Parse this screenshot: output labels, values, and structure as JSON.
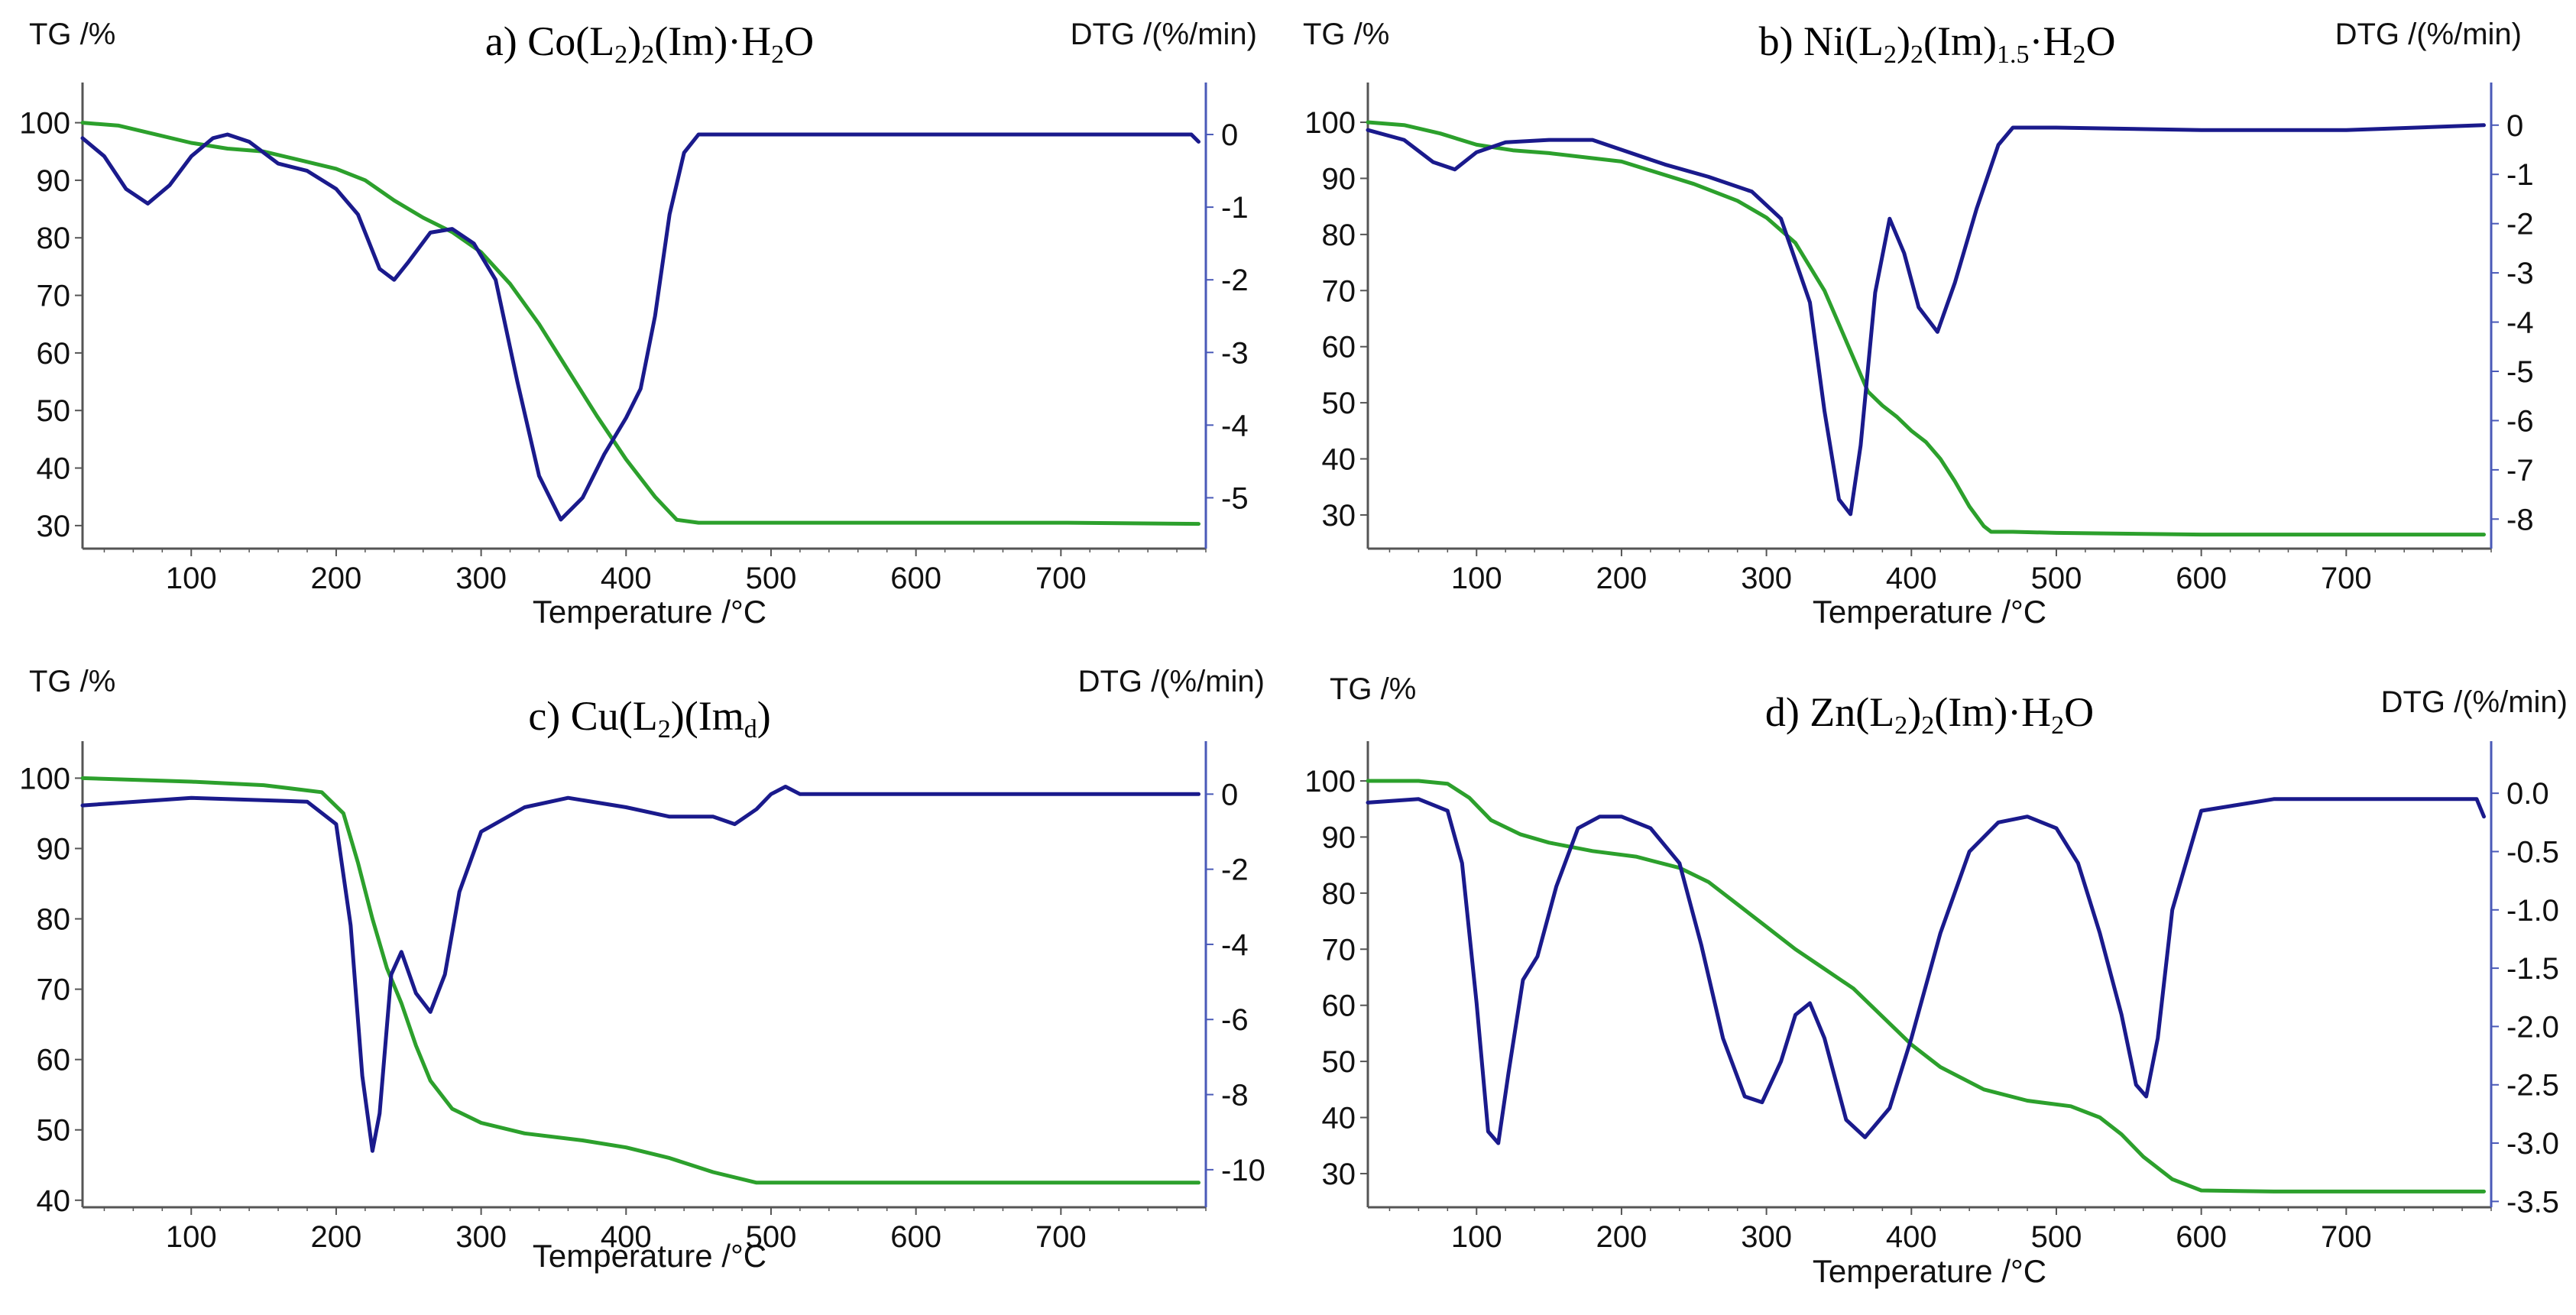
{
  "figure": {
    "x_label": "Temperature /°C",
    "y_left_label": "TG /%",
    "y_right_label": "DTG /(%/min)",
    "colors": {
      "tg": "#2ca02c",
      "dtg": "#1a1a8c",
      "right_axis": "#4a5ab8",
      "axes": "#555555",
      "grid_text": "#111111"
    }
  },
  "chart_data": [
    {
      "type": "line",
      "title": {
        "prefix": "a) Co(L",
        "sub1": "2",
        "mid1": ")",
        "sub2": "2",
        "rest": "(Im)·H",
        "sub3": "2",
        "tail": "O"
      },
      "title_text": "a) Co(L2)2(Im)·H2O",
      "xlabel": "Temperature /°C",
      "ylabel_left": "TG /%",
      "ylabel_right": "DTG /(%/min)",
      "xlim": [
        25,
        800
      ],
      "ylim_left": [
        26,
        103
      ],
      "ylim_right": [
        -5.7,
        0.4
      ],
      "x_ticks": [
        100,
        200,
        300,
        400,
        500,
        600,
        700
      ],
      "y_left_ticks": [
        30,
        40,
        50,
        60,
        70,
        80,
        90,
        100
      ],
      "y_right_ticks": [
        0,
        -1,
        -2,
        -3,
        -4,
        -5
      ],
      "series": [
        {
          "name": "TG",
          "axis": "left",
          "x": [
            25,
            50,
            75,
            100,
            125,
            150,
            175,
            200,
            220,
            240,
            260,
            280,
            300,
            320,
            340,
            360,
            380,
            400,
            420,
            435,
            450,
            500,
            600,
            700,
            795
          ],
          "y": [
            100,
            99.5,
            98,
            96.5,
            95.5,
            95,
            93.5,
            92,
            90,
            86.5,
            83.5,
            81,
            77.5,
            72,
            65,
            57,
            49,
            41.5,
            35,
            31,
            30.5,
            30.5,
            30.5,
            30.5,
            30.3
          ]
        },
        {
          "name": "DTG",
          "axis": "right",
          "x": [
            25,
            40,
            55,
            70,
            85,
            100,
            115,
            125,
            140,
            160,
            180,
            200,
            215,
            230,
            240,
            250,
            265,
            280,
            295,
            310,
            325,
            340,
            355,
            370,
            385,
            400,
            410,
            420,
            430,
            440,
            450,
            460,
            480,
            500,
            600,
            700,
            790,
            795
          ],
          "y": [
            -0.05,
            -0.3,
            -0.75,
            -0.95,
            -0.7,
            -0.3,
            -0.05,
            0,
            -0.1,
            -0.4,
            -0.5,
            -0.75,
            -1.1,
            -1.85,
            -2.0,
            -1.75,
            -1.35,
            -1.3,
            -1.5,
            -2.0,
            -3.4,
            -4.7,
            -5.3,
            -5.0,
            -4.4,
            -3.9,
            -3.5,
            -2.5,
            -1.1,
            -0.25,
            0,
            0,
            0,
            0,
            0,
            0,
            0,
            -0.1
          ]
        }
      ]
    },
    {
      "type": "line",
      "title": {
        "prefix": "b) Ni(L",
        "sub1": "2",
        "mid1": ")",
        "sub2": "2",
        "rest": "(Im)",
        "sub3": "1.5",
        "rest2": "·H",
        "sub4": "2",
        "tail": "O"
      },
      "title_text": "b) Ni(L2)2(Im)1.5·H2O",
      "xlabel": "Temperature /°C",
      "ylabel_left": "TG /%",
      "ylabel_right": "DTG /(%/min)",
      "xlim": [
        25,
        800
      ],
      "ylim_left": [
        24,
        103
      ],
      "ylim_right": [
        -8.6,
        0.4
      ],
      "x_ticks": [
        100,
        200,
        300,
        400,
        500,
        600,
        700
      ],
      "y_left_ticks": [
        30,
        40,
        50,
        60,
        70,
        80,
        90,
        100
      ],
      "y_right_ticks": [
        0,
        -1,
        -2,
        -3,
        -4,
        -5,
        -6,
        -7,
        -8
      ],
      "series": [
        {
          "name": "TG",
          "axis": "left",
          "x": [
            25,
            50,
            75,
            100,
            125,
            150,
            200,
            250,
            280,
            300,
            320,
            340,
            350,
            360,
            370,
            380,
            390,
            400,
            410,
            420,
            430,
            440,
            450,
            455,
            470,
            500,
            600,
            700,
            795
          ],
          "y": [
            100,
            99.5,
            98,
            96,
            95,
            94.5,
            93,
            89,
            86,
            83,
            78.5,
            70,
            64,
            58,
            52,
            49.5,
            47.5,
            45,
            43,
            40,
            36,
            31.5,
            28,
            27,
            27,
            26.8,
            26.5,
            26.5,
            26.5
          ]
        },
        {
          "name": "DTG",
          "axis": "right",
          "x": [
            25,
            50,
            70,
            85,
            100,
            120,
            150,
            180,
            200,
            230,
            260,
            290,
            310,
            330,
            340,
            350,
            358,
            365,
            375,
            385,
            395,
            405,
            418,
            430,
            445,
            460,
            470,
            500,
            600,
            700,
            795
          ],
          "y": [
            -0.1,
            -0.3,
            -0.75,
            -0.9,
            -0.55,
            -0.35,
            -0.3,
            -0.3,
            -0.5,
            -0.8,
            -1.05,
            -1.35,
            -1.9,
            -3.6,
            -5.8,
            -7.6,
            -7.9,
            -6.5,
            -3.4,
            -1.9,
            -2.6,
            -3.7,
            -4.2,
            -3.2,
            -1.7,
            -0.4,
            -0.05,
            -0.05,
            -0.1,
            -0.1,
            0
          ]
        }
      ]
    },
    {
      "type": "line",
      "title": {
        "prefix": "c) Cu(L",
        "sub1": "2",
        "mid1": ")(Im",
        "sub2": "d",
        "tail": ")"
      },
      "title_text": "c) Cu(L2)(Imd)",
      "xlabel": "Temperature /°C",
      "ylabel_left": "TG /%",
      "ylabel_right": "DTG /(%/min)",
      "xlim": [
        25,
        800
      ],
      "ylim_left": [
        39,
        102
      ],
      "ylim_right": [
        -11,
        0.8
      ],
      "x_ticks": [
        100,
        200,
        300,
        400,
        500,
        600,
        700
      ],
      "y_left_ticks": [
        40,
        50,
        60,
        70,
        80,
        90,
        100
      ],
      "y_right_ticks": [
        0,
        -2,
        -4,
        -6,
        -8,
        -10
      ],
      "series": [
        {
          "name": "TG",
          "axis": "left",
          "x": [
            25,
            100,
            150,
            190,
            205,
            215,
            225,
            235,
            245,
            255,
            265,
            280,
            300,
            330,
            370,
            400,
            430,
            460,
            490,
            500,
            600,
            700,
            795
          ],
          "y": [
            100,
            99.5,
            99,
            98,
            95,
            88,
            80,
            73,
            68,
            62,
            57,
            53,
            51,
            49.5,
            48.5,
            47.5,
            46,
            44,
            42.5,
            42.5,
            42.5,
            42.5,
            42.5
          ]
        },
        {
          "name": "DTG",
          "axis": "right",
          "x": [
            25,
            100,
            180,
            200,
            210,
            218,
            225,
            230,
            238,
            245,
            255,
            265,
            275,
            285,
            300,
            330,
            360,
            400,
            430,
            460,
            475,
            490,
            500,
            510,
            520,
            600,
            700,
            795
          ],
          "y": [
            -0.3,
            -0.1,
            -0.2,
            -0.8,
            -3.5,
            -7.5,
            -9.5,
            -8.5,
            -4.8,
            -4.2,
            -5.3,
            -5.8,
            -4.8,
            -2.6,
            -1.0,
            -0.35,
            -0.1,
            -0.35,
            -0.6,
            -0.6,
            -0.8,
            -0.4,
            0.0,
            0.2,
            0.0,
            0.0,
            0.0,
            0.0
          ]
        }
      ]
    },
    {
      "type": "line",
      "title": {
        "prefix": "d) Zn(L",
        "sub1": "2",
        "mid1": ")",
        "sub2": "2",
        "rest": "(Im)·H",
        "sub3": "2",
        "tail": "O"
      },
      "title_text": "d) Zn(L2)2(Im)·H2O",
      "xlabel": "Temperature /°C",
      "ylabel_left": "TG /%",
      "ylabel_right": "DTG /(%/min)",
      "xlim": [
        25,
        800
      ],
      "ylim_left": [
        24,
        103
      ],
      "ylim_right": [
        -3.55,
        0.25
      ],
      "x_ticks": [
        100,
        200,
        300,
        400,
        500,
        600,
        700
      ],
      "y_left_ticks": [
        30,
        40,
        50,
        60,
        70,
        80,
        90,
        100
      ],
      "y_right_ticks": [
        "0.0",
        "-0.5",
        "-1.0",
        "-1.5",
        "-2.0",
        "-2.5",
        "-3.0",
        "-3.5"
      ],
      "series": [
        {
          "name": "TG",
          "axis": "left",
          "x": [
            25,
            60,
            80,
            95,
            110,
            130,
            150,
            180,
            210,
            240,
            260,
            280,
            300,
            320,
            340,
            360,
            380,
            400,
            420,
            450,
            480,
            510,
            530,
            545,
            560,
            580,
            600,
            650,
            700,
            795
          ],
          "y": [
            100,
            100,
            99.5,
            97,
            93,
            90.5,
            89,
            87.5,
            86.5,
            84.5,
            82,
            78,
            74,
            70,
            66.5,
            63,
            58,
            53,
            49,
            45,
            43,
            42,
            40,
            37,
            33,
            29,
            27,
            26.8,
            26.8,
            26.8
          ]
        },
        {
          "name": "DTG",
          "axis": "right",
          "x": [
            25,
            60,
            80,
            90,
            100,
            108,
            115,
            122,
            132,
            142,
            155,
            170,
            185,
            200,
            220,
            240,
            255,
            270,
            285,
            297,
            310,
            320,
            330,
            340,
            355,
            368,
            385,
            400,
            420,
            440,
            460,
            480,
            500,
            515,
            530,
            545,
            555,
            562,
            570,
            580,
            600,
            650,
            700,
            790,
            795
          ],
          "y": [
            -0.08,
            -0.05,
            -0.15,
            -0.6,
            -1.8,
            -2.9,
            -3.0,
            -2.4,
            -1.6,
            -1.4,
            -0.8,
            -0.3,
            -0.2,
            -0.2,
            -0.3,
            -0.6,
            -1.3,
            -2.1,
            -2.6,
            -2.65,
            -2.3,
            -1.9,
            -1.8,
            -2.1,
            -2.8,
            -2.95,
            -2.7,
            -2.1,
            -1.2,
            -0.5,
            -0.25,
            -0.2,
            -0.3,
            -0.6,
            -1.2,
            -1.9,
            -2.5,
            -2.6,
            -2.1,
            -1.0,
            -0.15,
            -0.05,
            -0.05,
            -0.05,
            -0.2
          ]
        }
      ]
    }
  ]
}
